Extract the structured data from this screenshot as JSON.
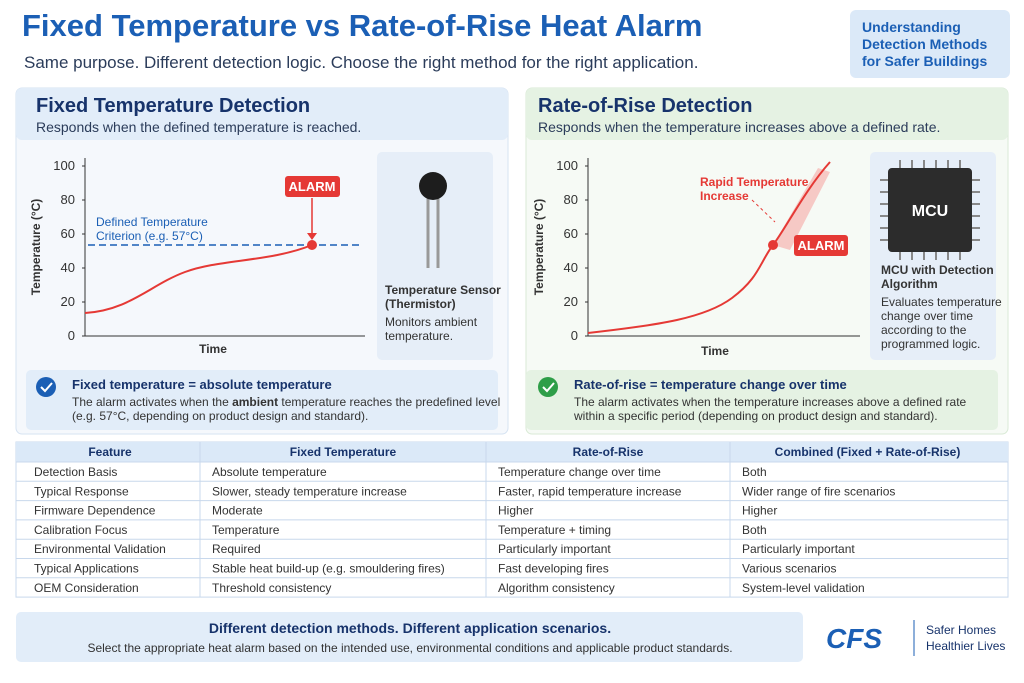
{
  "header": {
    "title": "Fixed Temperature vs Rate-of-Rise Heat Alarm",
    "subtitle": "Same purpose. Different detection logic. Choose the right method for the right application."
  },
  "badge": {
    "lines": [
      "Understanding",
      "Detection Methods",
      "for Safer Buildings"
    ]
  },
  "panels": [
    {
      "title": "Fixed Temperature Detection",
      "subtitle": "Responds when the defined temperature is reached.",
      "chart": {
        "y_label": "Temperature (°C)",
        "x_label": "Time",
        "ylim": [
          0,
          100
        ],
        "yticks": [
          0,
          20,
          40,
          60,
          80,
          100
        ],
        "alarm": "ALARM",
        "criterion": [
          "Defined Temperature",
          "Criterion (e.g. 57°C)"
        ]
      },
      "device": {
        "name": [
          "Temperature Sensor",
          "(Thermistor)"
        ],
        "description": [
          "Monitors ambient",
          "temperature."
        ]
      },
      "note": {
        "title": "Fixed temperature = absolute temperature",
        "text": [
          [
            "The alarm activates when the ",
            "ambient",
            " temperature reaches the predefined level"
          ],
          [
            "(e.g. 57°C, depending on product design and standard)."
          ]
        ]
      }
    },
    {
      "title": "Rate-of-Rise Detection",
      "subtitle": "Responds when the temperature increases above a defined rate.",
      "chart": {
        "y_label": "Temperature (°C)",
        "x_label": "Time",
        "ylim": [
          0,
          100
        ],
        "yticks": [
          0,
          20,
          40,
          60,
          80,
          100
        ],
        "alarm": "ALARM",
        "callout": [
          "Rapid Temperature",
          "Increase"
        ],
        "chip": "MCU"
      },
      "device": {
        "name": [
          "MCU with Detection",
          "Algorithm"
        ],
        "description": [
          "Evaluates temperature",
          "change over time",
          "according to the",
          "programmed logic."
        ]
      },
      "note": {
        "title": "Rate-of-rise = temperature change over time",
        "text": [
          [
            "The alarm activates when the temperature increases above a defined rate"
          ],
          [
            "within a specific period (depending on product design and standard)."
          ]
        ]
      }
    }
  ],
  "table": {
    "columns": [
      "Feature",
      "Fixed Temperature",
      "Rate-of-Rise",
      "Combined (Fixed + Rate-of-Rise)"
    ],
    "rows": [
      [
        "Detection Basis",
        "Absolute temperature",
        "Temperature change over time",
        "Both"
      ],
      [
        "Typical Response",
        "Slower, steady temperature increase",
        "Faster, rapid temperature increase",
        "Wider range of fire scenarios"
      ],
      [
        "Firmware Dependence",
        "Moderate",
        "Higher",
        "Higher"
      ],
      [
        "Calibration Focus",
        "Temperature",
        "Temperature + timing",
        "Both"
      ],
      [
        "Environmental Validation",
        "Required",
        "Particularly important",
        "Particularly important"
      ],
      [
        "Typical Applications",
        "Stable heat build-up (e.g. smouldering fires)",
        "Fast developing fires",
        "Various scenarios"
      ],
      [
        "OEM Consideration",
        "Threshold consistency",
        "Algorithm consistency",
        "System-level validation"
      ]
    ]
  },
  "footer": {
    "headline": "Different detection methods. Different application scenarios.",
    "text": "Select the appropriate heat alarm based on the intended use, environmental conditions and applicable product standards.",
    "logo": "CFS",
    "tagline": [
      "Safer Homes",
      "Healthier Lives"
    ]
  }
}
